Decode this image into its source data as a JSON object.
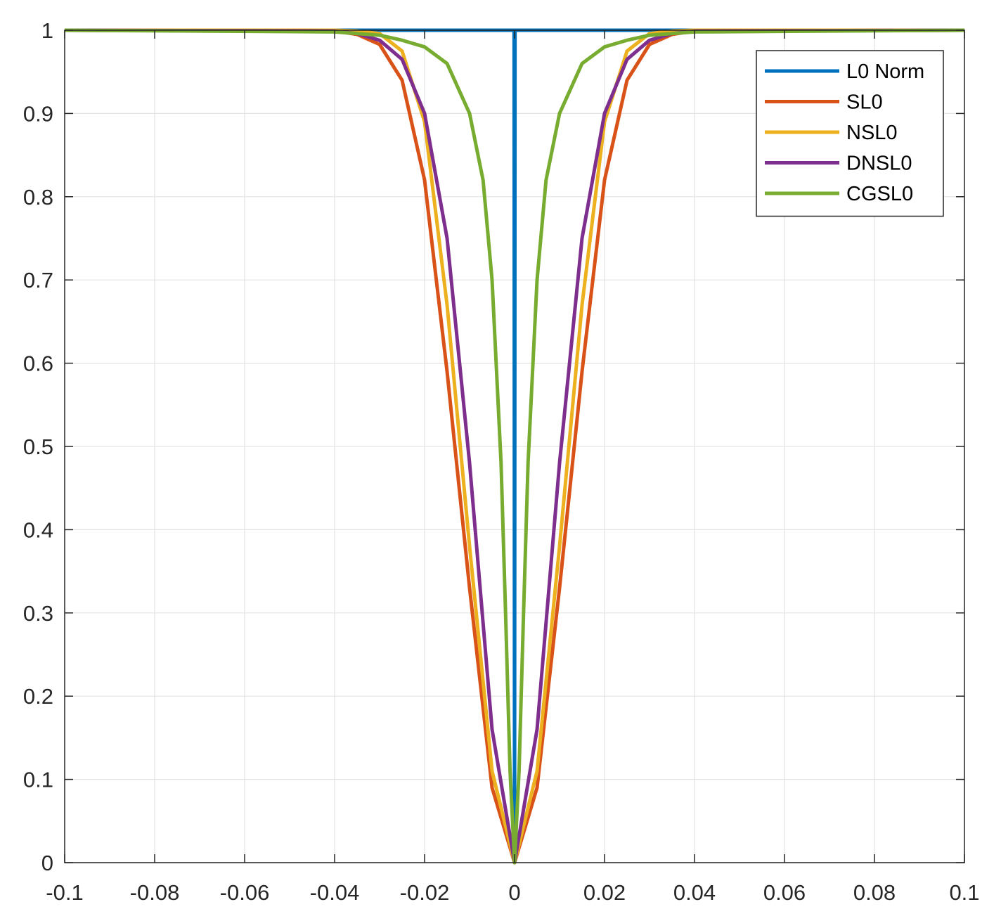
{
  "chart_data": {
    "type": "line",
    "title": "",
    "xlabel": "",
    "ylabel": "",
    "xlim": [
      -0.1,
      0.1
    ],
    "ylim": [
      0,
      1
    ],
    "grid": true,
    "legend_placement": "top-right",
    "x_ticks": [
      -0.1,
      -0.08,
      -0.06,
      -0.04,
      -0.02,
      0,
      0.02,
      0.04,
      0.06,
      0.08,
      0.1
    ],
    "x_tick_labels": [
      "-0.1",
      "-0.08",
      "-0.06",
      "-0.04",
      "-0.02",
      "0",
      "0.02",
      "0.04",
      "0.06",
      "0.08",
      "0.1"
    ],
    "y_ticks": [
      0,
      0.1,
      0.2,
      0.3,
      0.4,
      0.5,
      0.6,
      0.7,
      0.8,
      0.9,
      1
    ],
    "y_tick_labels": [
      "0",
      "0.1",
      "0.2",
      "0.3",
      "0.4",
      "0.5",
      "0.6",
      "0.7",
      "0.8",
      "0.9",
      "1"
    ],
    "series": [
      {
        "name": "L0 Norm",
        "color": "#0072bd",
        "x": [
          -0.1,
          -0.0001,
          0,
          0.0001,
          0.1
        ],
        "y": [
          1,
          1,
          0,
          1,
          1
        ]
      },
      {
        "name": "SL0",
        "color": "#d95319",
        "x": [
          -0.1,
          -0.04,
          -0.035,
          -0.03,
          -0.025,
          -0.02,
          -0.015,
          -0.01,
          -0.005,
          0,
          0.005,
          0.01,
          0.015,
          0.02,
          0.025,
          0.03,
          0.035,
          0.04,
          0.1
        ],
        "y": [
          1,
          0.999,
          0.995,
          0.983,
          0.94,
          0.82,
          0.59,
          0.33,
          0.09,
          0,
          0.09,
          0.33,
          0.59,
          0.82,
          0.94,
          0.983,
          0.995,
          0.999,
          1
        ]
      },
      {
        "name": "NSL0",
        "color": "#edb120",
        "x": [
          -0.1,
          -0.04,
          -0.035,
          -0.03,
          -0.025,
          -0.02,
          -0.015,
          -0.01,
          -0.005,
          0,
          0.005,
          0.01,
          0.015,
          0.02,
          0.025,
          0.03,
          0.035,
          0.04,
          0.1
        ],
        "y": [
          1,
          1,
          0.999,
          0.996,
          0.975,
          0.89,
          0.67,
          0.38,
          0.11,
          0,
          0.11,
          0.38,
          0.67,
          0.89,
          0.975,
          0.996,
          0.999,
          1,
          1
        ]
      },
      {
        "name": "DNSL0",
        "color": "#7e2f8e",
        "x": [
          -0.1,
          -0.04,
          -0.035,
          -0.03,
          -0.025,
          -0.02,
          -0.015,
          -0.01,
          -0.005,
          0,
          0.005,
          0.01,
          0.015,
          0.02,
          0.025,
          0.03,
          0.035,
          0.04,
          0.1
        ],
        "y": [
          1,
          0.999,
          0.996,
          0.988,
          0.965,
          0.9,
          0.75,
          0.48,
          0.16,
          0,
          0.16,
          0.48,
          0.75,
          0.9,
          0.965,
          0.988,
          0.996,
          0.999,
          1
        ]
      },
      {
        "name": "CGSL0",
        "color": "#77ac30",
        "x": [
          -0.1,
          -0.04,
          -0.03,
          -0.025,
          -0.02,
          -0.015,
          -0.01,
          -0.007,
          -0.005,
          -0.003,
          -0.002,
          -0.001,
          0,
          0.001,
          0.002,
          0.003,
          0.005,
          0.007,
          0.01,
          0.015,
          0.02,
          0.025,
          0.03,
          0.04,
          0.1
        ],
        "y": [
          1,
          0.998,
          0.994,
          0.988,
          0.98,
          0.96,
          0.9,
          0.82,
          0.7,
          0.48,
          0.3,
          0.11,
          0,
          0.11,
          0.3,
          0.48,
          0.7,
          0.82,
          0.9,
          0.96,
          0.98,
          0.988,
          0.994,
          0.998,
          1
        ]
      }
    ]
  }
}
